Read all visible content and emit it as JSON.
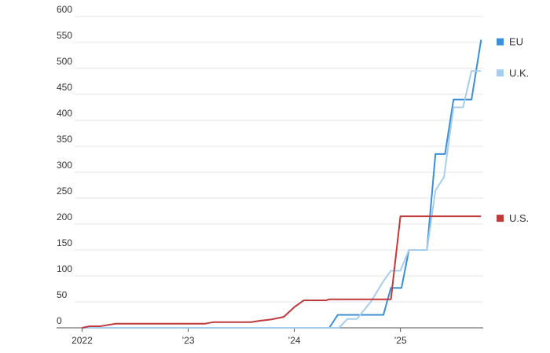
{
  "chart_data": {
    "type": "line",
    "xlim": [
      2021.76,
      2025.78
    ],
    "xticks": [
      {
        "value": 2022,
        "label": "2022"
      },
      {
        "value": 2023,
        "label": "’23"
      },
      {
        "value": 2024,
        "label": "’24"
      },
      {
        "value": 2025,
        "label": "’25"
      }
    ],
    "ylim": [
      0,
      600
    ],
    "yticks": [
      0,
      50,
      100,
      150,
      200,
      250,
      300,
      350,
      400,
      450,
      500,
      550,
      600
    ],
    "grid": true,
    "series": [
      {
        "name": "EU",
        "color": "#3a8fd6",
        "x": [
          2022.0,
          2024.33,
          2024.41,
          2024.84,
          2024.91,
          2025.01,
          2025.08,
          2025.25,
          2025.33,
          2025.42,
          2025.5,
          2025.67,
          2025.76
        ],
        "values": [
          0,
          0,
          25,
          25,
          77,
          77,
          150,
          150,
          335,
          335,
          440,
          440,
          555
        ]
      },
      {
        "name": "U.K.",
        "color": "#a6cdee",
        "x": [
          2022.0,
          2024.42,
          2024.5,
          2024.59,
          2024.64,
          2024.72,
          2024.84,
          2024.91,
          2025.0,
          2025.08,
          2025.25,
          2025.33,
          2025.41,
          2025.5,
          2025.59,
          2025.67,
          2025.76
        ],
        "values": [
          0,
          0,
          17,
          17,
          30,
          50,
          90,
          110,
          110,
          150,
          150,
          265,
          290,
          425,
          425,
          495,
          495
        ]
      },
      {
        "name": "U.S.",
        "color": "#c0393b",
        "x": [
          2022.0,
          2022.07,
          2022.17,
          2022.32,
          2023.16,
          2023.24,
          2023.59,
          2023.69,
          2023.78,
          2023.9,
          2024.0,
          2024.09,
          2024.3,
          2024.33,
          2024.91,
          2025.0,
          2025.76
        ],
        "values": [
          0,
          3,
          3,
          8,
          8,
          11,
          11,
          14,
          16,
          21,
          40,
          53,
          53,
          55,
          55,
          215,
          215
        ]
      }
    ]
  }
}
